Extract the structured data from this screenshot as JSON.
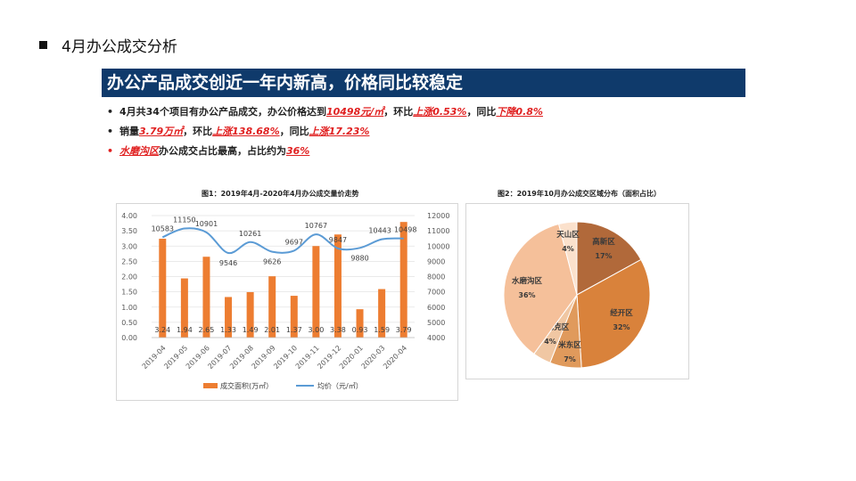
{
  "page_title": "4月办公成交分析",
  "banner": "办公产品成交创近一年内新高，价格同比较稳定",
  "bullets": [
    {
      "parts": [
        {
          "t": "4月共34个项目有办公产品成交，办公价格达到",
          "hl": false
        },
        {
          "t": "10498元/㎡",
          "hl": true
        },
        {
          "t": "，环比",
          "hl": false
        },
        {
          "t": "上涨0.53%",
          "hl": true
        },
        {
          "t": "，同比",
          "hl": false
        },
        {
          "t": "下降0.8%",
          "hl": true
        }
      ]
    },
    {
      "parts": [
        {
          "t": "销量",
          "hl": false
        },
        {
          "t": "3.79万㎡",
          "hl": true
        },
        {
          "t": "，环比",
          "hl": false
        },
        {
          "t": "上涨138.68%",
          "hl": true
        },
        {
          "t": "，同比",
          "hl": false
        },
        {
          "t": "上涨17.23%",
          "hl": true
        }
      ]
    },
    {
      "parts": [
        {
          "t": "水磨沟区",
          "hl": true
        },
        {
          "t": "办公成交占比最高，占比约为",
          "hl": false
        },
        {
          "t": "36%",
          "hl": true
        }
      ]
    }
  ],
  "colors": {
    "banner": "#0f3a6b",
    "highlight": "#e02020",
    "bar": "#ed7d31",
    "line": "#5b9bd5"
  },
  "chart_data": [
    {
      "type": "bar",
      "title": "图1：2019年4月-2020年4月办公成交量价走势",
      "categories": [
        "2019-04",
        "2019-05",
        "2019-06",
        "2019-07",
        "2019-08",
        "2019-09",
        "2019-10",
        "2019-11",
        "2019-12",
        "2020-01",
        "2020-03",
        "2020-04"
      ],
      "series": [
        {
          "name": "成交面积(万㎡）",
          "type": "bar",
          "axis": "left",
          "values": [
            3.24,
            1.94,
            2.65,
            1.33,
            1.49,
            2.01,
            1.37,
            3.0,
            3.38,
            0.93,
            1.59,
            3.79
          ]
        },
        {
          "name": "均价（元/㎡）",
          "type": "line",
          "axis": "right",
          "values": [
            10583,
            11150,
            10901,
            9546,
            10261,
            9626,
            9697,
            10767,
            9847,
            9880,
            10443,
            10498
          ]
        }
      ],
      "left_ticks": [
        "0.00",
        "0.50",
        "1.00",
        "1.50",
        "2.00",
        "2.50",
        "3.00",
        "3.50",
        "4.00"
      ],
      "right_ticks": [
        "4000",
        "5000",
        "6000",
        "7000",
        "8000",
        "9000",
        "10000",
        "11000",
        "12000"
      ],
      "ylim_left": [
        0,
        4
      ],
      "ylim_right": [
        4000,
        12000
      ],
      "legend": "bottom"
    },
    {
      "type": "pie",
      "title": "图2：2019年10月办公成交区域分布（面积占比）",
      "slices": [
        {
          "label": "高新区",
          "pct": "17%",
          "value": 17,
          "color": "#b1693a"
        },
        {
          "label": "经开区",
          "pct": "32%",
          "value": 32,
          "color": "#d9823b"
        },
        {
          "label": "米东区",
          "pct": "7%",
          "value": 7,
          "color": "#e09a5c"
        },
        {
          "label": "沙依巴克区",
          "pct": "4%",
          "value": 4,
          "color": "#f0c7a3"
        },
        {
          "label": "水磨沟区",
          "pct": "36%",
          "value": 36,
          "color": "#f5c09a"
        },
        {
          "label": "天山区",
          "pct": "4%",
          "value": 4,
          "color": "#fbe1cc"
        }
      ]
    }
  ]
}
